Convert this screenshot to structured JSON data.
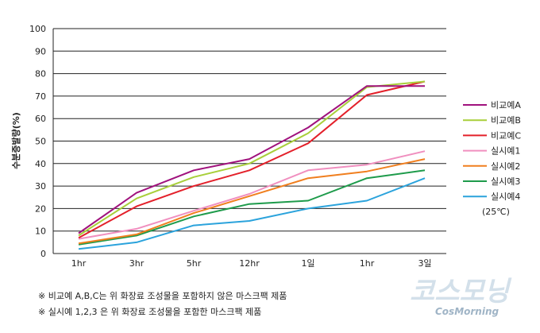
{
  "chart_data": {
    "type": "line",
    "title": "",
    "xlabel": "",
    "ylabel": "수분증발량(%)",
    "ylim": [
      0,
      100
    ],
    "yticks": [
      0,
      10,
      20,
      30,
      40,
      50,
      60,
      70,
      80,
      90,
      100
    ],
    "categories": [
      "1hr",
      "3hr",
      "5hr",
      "12hr",
      "1일",
      "1hr",
      "3일"
    ],
    "grid": true,
    "legend_position": "right",
    "annotation": "(25℃)",
    "series": [
      {
        "name": "비교예A",
        "color": "#a0127d",
        "values": [
          9,
          27,
          37,
          42,
          56,
          74.5,
          74.5
        ]
      },
      {
        "name": "비교예B",
        "color": "#a8cf3a",
        "values": [
          8,
          24.5,
          34,
          40,
          53.5,
          74,
          76.5
        ]
      },
      {
        "name": "비교예C",
        "color": "#e3202a",
        "values": [
          7,
          21,
          30,
          37,
          49,
          70.5,
          76.5
        ]
      },
      {
        "name": "실시예1",
        "color": "#f08fbf",
        "values": [
          6.5,
          11,
          19,
          26.5,
          37,
          39.5,
          45.5
        ]
      },
      {
        "name": "실시예2",
        "color": "#f07f1f",
        "values": [
          4.5,
          8.5,
          18,
          25.5,
          33.5,
          36.5,
          42
        ]
      },
      {
        "name": "실시예3",
        "color": "#1e9b4b",
        "values": [
          4,
          8,
          16.5,
          22,
          23.5,
          33.5,
          37
        ]
      },
      {
        "name": "실시예4",
        "color": "#2ba3dc",
        "values": [
          2,
          5,
          12.5,
          14.5,
          20,
          23.5,
          33.5
        ]
      }
    ]
  },
  "notes": [
    "※ 비교예 A,B,C는 위 화장료 조성물을 포함하지 않은 마스크팩 제품",
    "※ 실시예 1,2,3 은 위 화장료 조성물을 포함한 마스크팩 제품"
  ],
  "watermark": {
    "main": "코스모닝",
    "sub": "CosMorning",
    "colors": {
      "main": "#d3e0ea",
      "sub": "#9fb4c6"
    }
  }
}
